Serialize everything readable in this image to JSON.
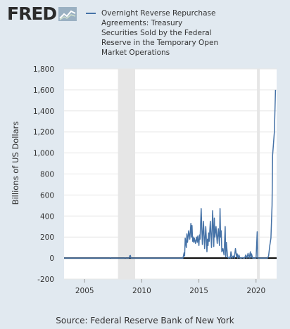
{
  "logo": {
    "text": "FRED",
    "icon": "fred-chart-icon"
  },
  "chart_data": {
    "type": "line",
    "title": "",
    "xlabel": "",
    "ylabel": "Billions of US Dollars",
    "legend": {
      "placement": "top",
      "entries": [
        "Overnight Reverse Repurchase Agreements: Treasury Securities Sold by the Federal Reserve in the Temporary Open Market Operations"
      ]
    },
    "source": "Source: Federal Reserve Bank of New York",
    "colors": {
      "line": "#4572a7",
      "zero_line": "#000000",
      "recession": "#e6e6e6",
      "plot_bg": "#ffffff",
      "page_bg": "#e1e9f0",
      "grid": "#e6e6e6"
    },
    "grid": true,
    "xlim": [
      2003.2,
      2021.8
    ],
    "ylim": [
      -200,
      1800
    ],
    "x_ticks": [
      2005,
      2010,
      2015,
      2020
    ],
    "x_tick_labels": [
      "2005",
      "2010",
      "2015",
      "2020"
    ],
    "y_ticks": [
      -200,
      0,
      200,
      400,
      600,
      800,
      1000,
      1200,
      1400,
      1600,
      1800
    ],
    "y_tick_labels": [
      "-200",
      "0",
      "200",
      "400",
      "600",
      "800",
      "1,000",
      "1,200",
      "1,400",
      "1,600",
      "1,800"
    ],
    "recessions": [
      [
        2007.92,
        2009.42
      ],
      [
        2020.08,
        2020.33
      ]
    ],
    "series": [
      {
        "name": "Overnight Reverse Repurchase Agreements: Treasury Securities Sold by the Federal Reserve in the Temporary Open Market Operations",
        "x": [
          2003.2,
          2007.2,
          2007.25,
          2007.3,
          2008.5,
          2008.55,
          2008.6,
          2008.9,
          2008.95,
          2009.0,
          2009.05,
          2013.6,
          2013.7,
          2013.75,
          2013.8,
          2013.9,
          2013.95,
          2014.0,
          2014.1,
          2014.2,
          2014.3,
          2014.35,
          2014.4,
          2014.45,
          2014.5,
          2014.55,
          2014.6,
          2014.7,
          2014.8,
          2014.85,
          2014.9,
          2015.0,
          2015.05,
          2015.1,
          2015.2,
          2015.3,
          2015.4,
          2015.5,
          2015.6,
          2015.7,
          2015.75,
          2015.8,
          2015.85,
          2015.9,
          2016.0,
          2016.1,
          2016.2,
          2016.3,
          2016.35,
          2016.4,
          2016.5,
          2016.6,
          2016.7,
          2016.8,
          2016.85,
          2016.9,
          2016.95,
          2017.0,
          2017.1,
          2017.2,
          2017.3,
          2017.35,
          2017.4,
          2017.5,
          2017.55,
          2017.6,
          2017.7,
          2017.75,
          2017.8,
          2017.9,
          2018.0,
          2018.1,
          2018.2,
          2018.3,
          2018.35,
          2018.4,
          2018.5,
          2018.6,
          2018.7,
          2018.8,
          2018.9,
          2019.0,
          2019.1,
          2019.2,
          2019.3,
          2019.4,
          2019.5,
          2019.55,
          2019.6,
          2019.7,
          2019.8,
          2019.9,
          2019.95,
          2020.0,
          2020.1,
          2020.15,
          2020.2,
          2020.25,
          2020.35,
          2020.5,
          2020.8,
          2021.0,
          2021.1,
          2021.2,
          2021.3,
          2021.4,
          2021.45,
          2021.5,
          2021.6,
          2021.65,
          2021.7
        ],
        "values": [
          0,
          0,
          4,
          0,
          0,
          2,
          0,
          0,
          22,
          25,
          0,
          0,
          50,
          20,
          190,
          100,
          230,
          150,
          260,
          180,
          330,
          200,
          310,
          160,
          200,
          150,
          190,
          140,
          200,
          150,
          210,
          120,
          220,
          180,
          470,
          130,
          350,
          90,
          300,
          60,
          180,
          120,
          240,
          160,
          350,
          100,
          450,
          110,
          380,
          200,
          300,
          140,
          280,
          120,
          470,
          200,
          260,
          60,
          90,
          30,
          300,
          10,
          150,
          20,
          5,
          0,
          10,
          0,
          60,
          0,
          20,
          0,
          90,
          10,
          40,
          0,
          30,
          0,
          0,
          5,
          0,
          0,
          30,
          0,
          45,
          0,
          60,
          0,
          40,
          0,
          0,
          0,
          0,
          0,
          250,
          0,
          0,
          0,
          0,
          0,
          0,
          0,
          20,
          120,
          190,
          500,
          980,
          1050,
          1200,
          1400,
          1600
        ]
      }
    ]
  }
}
